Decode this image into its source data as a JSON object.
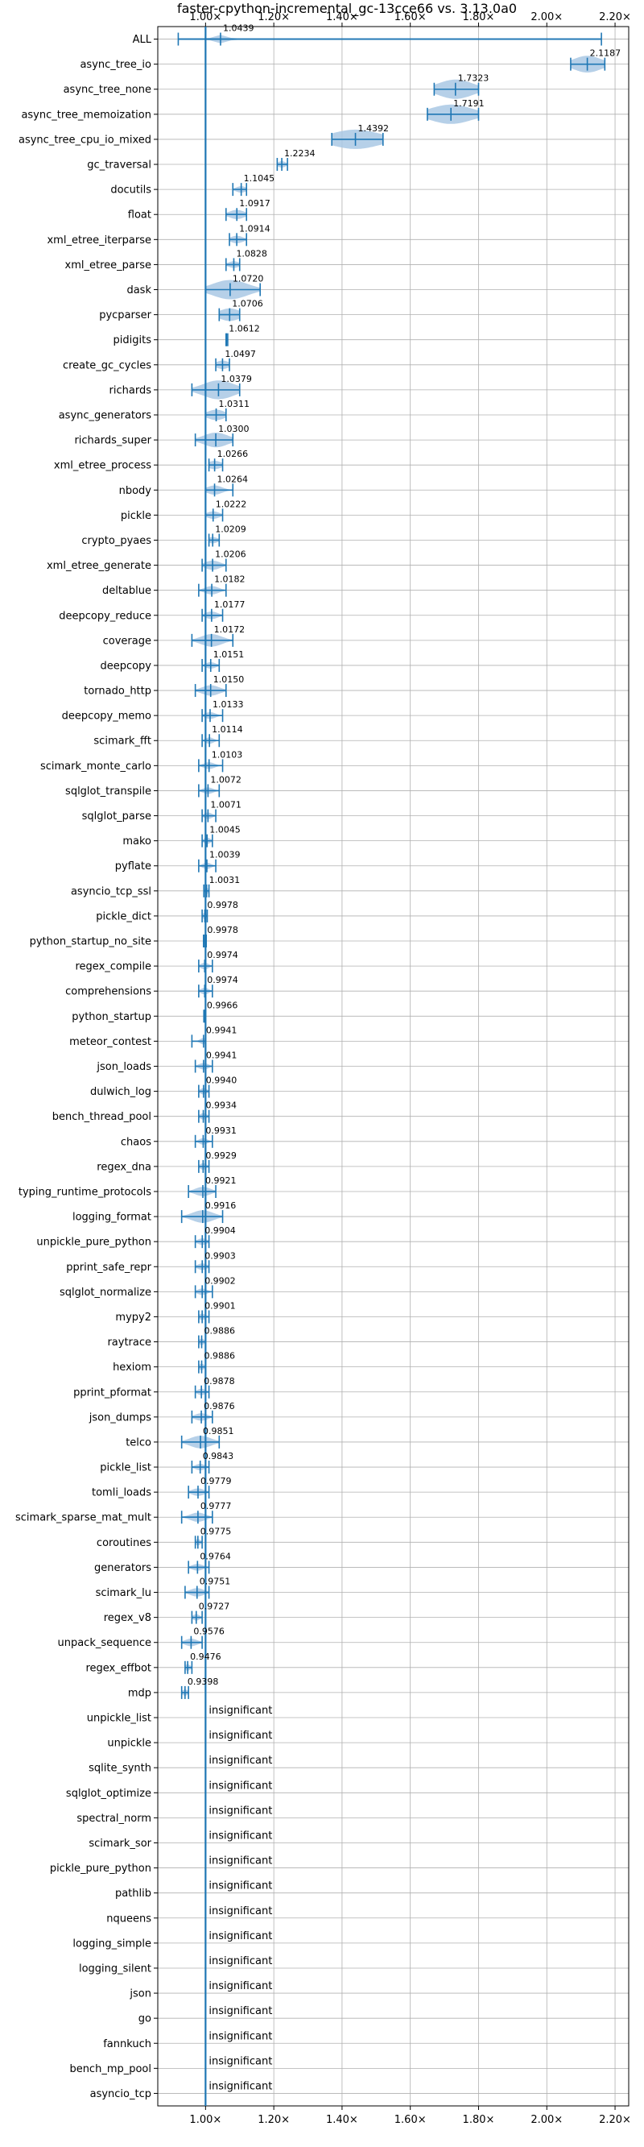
{
  "chart_data": {
    "type": "violin",
    "title": "faster-cpython-incremental_gc-13cce66 vs. 3.13.0a0",
    "xlabel": "",
    "ylabel": "",
    "xlim": [
      0.86,
      2.24
    ],
    "x_ticks": [
      1.0,
      1.2,
      1.4,
      1.6,
      1.8,
      2.0,
      2.2
    ],
    "x_tick_labels": [
      "1.00×",
      "1.20×",
      "1.40×",
      "1.60×",
      "1.80×",
      "2.00×",
      "2.20×"
    ],
    "baseline": 1.0,
    "grid": true,
    "insignificant_label": "insignificant",
    "rows": [
      {
        "name": "ALL",
        "mean": 1.0439,
        "label": "1.0439",
        "min": 0.92,
        "max": 2.16,
        "spread": 0.02
      },
      {
        "name": "async_tree_io",
        "mean": 2.1187,
        "label": "2.1187",
        "min": 2.07,
        "max": 2.17,
        "spread": 0.04
      },
      {
        "name": "async_tree_none",
        "mean": 1.7323,
        "label": "1.7323",
        "min": 1.67,
        "max": 1.8,
        "spread": 0.05
      },
      {
        "name": "async_tree_memoization",
        "mean": 1.7191,
        "label": "1.7191",
        "min": 1.65,
        "max": 1.8,
        "spread": 0.06
      },
      {
        "name": "async_tree_cpu_io_mixed",
        "mean": 1.4392,
        "label": "1.4392",
        "min": 1.37,
        "max": 1.52,
        "spread": 0.07
      },
      {
        "name": "gc_traversal",
        "mean": 1.2234,
        "label": "1.2234",
        "min": 1.21,
        "max": 1.24,
        "spread": 0.012
      },
      {
        "name": "docutils",
        "mean": 1.1045,
        "label": "1.1045",
        "min": 1.08,
        "max": 1.12,
        "spread": 0.015
      },
      {
        "name": "float",
        "mean": 1.0917,
        "label": "1.0917",
        "min": 1.06,
        "max": 1.12,
        "spread": 0.022
      },
      {
        "name": "xml_etree_iterparse",
        "mean": 1.0914,
        "label": "1.0914",
        "min": 1.07,
        "max": 1.12,
        "spread": 0.018
      },
      {
        "name": "xml_etree_parse",
        "mean": 1.0828,
        "label": "1.0828",
        "min": 1.06,
        "max": 1.1,
        "spread": 0.016
      },
      {
        "name": "dask",
        "mean": 1.072,
        "label": "1.0720",
        "min": 1.0,
        "max": 1.16,
        "spread": 0.05
      },
      {
        "name": "pycparser",
        "mean": 1.0706,
        "label": "1.0706",
        "min": 1.04,
        "max": 1.1,
        "spread": 0.03
      },
      {
        "name": "pidigits",
        "mean": 1.0612,
        "label": "1.0612",
        "min": 1.06,
        "max": 1.065,
        "spread": 0.004
      },
      {
        "name": "create_gc_cycles",
        "mean": 1.0497,
        "label": "1.0497",
        "min": 1.03,
        "max": 1.07,
        "spread": 0.02
      },
      {
        "name": "richards",
        "mean": 1.0379,
        "label": "1.0379",
        "min": 0.96,
        "max": 1.1,
        "spread": 0.045
      },
      {
        "name": "async_generators",
        "mean": 1.0311,
        "label": "1.0311",
        "min": 1.0,
        "max": 1.06,
        "spread": 0.025
      },
      {
        "name": "richards_super",
        "mean": 1.03,
        "label": "1.0300",
        "min": 0.97,
        "max": 1.08,
        "spread": 0.035
      },
      {
        "name": "xml_etree_process",
        "mean": 1.0266,
        "label": "1.0266",
        "min": 1.01,
        "max": 1.05,
        "spread": 0.02
      },
      {
        "name": "nbody",
        "mean": 1.0264,
        "label": "1.0264",
        "min": 1.0,
        "max": 1.08,
        "spread": 0.022
      },
      {
        "name": "pickle",
        "mean": 1.0222,
        "label": "1.0222",
        "min": 1.0,
        "max": 1.05,
        "spread": 0.018
      },
      {
        "name": "crypto_pyaes",
        "mean": 1.0209,
        "label": "1.0209",
        "min": 1.01,
        "max": 1.04,
        "spread": 0.014
      },
      {
        "name": "xml_etree_generate",
        "mean": 1.0206,
        "label": "1.0206",
        "min": 0.99,
        "max": 1.06,
        "spread": 0.022
      },
      {
        "name": "deltablue",
        "mean": 1.0182,
        "label": "1.0182",
        "min": 0.98,
        "max": 1.06,
        "spread": 0.02
      },
      {
        "name": "deepcopy_reduce",
        "mean": 1.0177,
        "label": "1.0177",
        "min": 0.99,
        "max": 1.05,
        "spread": 0.018
      },
      {
        "name": "coverage",
        "mean": 1.0172,
        "label": "1.0172",
        "min": 0.96,
        "max": 1.08,
        "spread": 0.03
      },
      {
        "name": "deepcopy",
        "mean": 1.0151,
        "label": "1.0151",
        "min": 0.99,
        "max": 1.04,
        "spread": 0.015
      },
      {
        "name": "tornado_http",
        "mean": 1.015,
        "label": "1.0150",
        "min": 0.97,
        "max": 1.06,
        "spread": 0.025
      },
      {
        "name": "deepcopy_memo",
        "mean": 1.0133,
        "label": "1.0133",
        "min": 0.99,
        "max": 1.05,
        "spread": 0.016
      },
      {
        "name": "scimark_fft",
        "mean": 1.0114,
        "label": "1.0114",
        "min": 0.99,
        "max": 1.04,
        "spread": 0.012
      },
      {
        "name": "scimark_monte_carlo",
        "mean": 1.0103,
        "label": "1.0103",
        "min": 0.98,
        "max": 1.05,
        "spread": 0.016
      },
      {
        "name": "sqlglot_transpile",
        "mean": 1.0072,
        "label": "1.0072",
        "min": 0.98,
        "max": 1.04,
        "spread": 0.015
      },
      {
        "name": "sqlglot_parse",
        "mean": 1.0071,
        "label": "1.0071",
        "min": 0.99,
        "max": 1.03,
        "spread": 0.012
      },
      {
        "name": "mako",
        "mean": 1.0045,
        "label": "1.0045",
        "min": 0.99,
        "max": 1.02,
        "spread": 0.01
      },
      {
        "name": "pyflate",
        "mean": 1.0039,
        "label": "1.0039",
        "min": 0.98,
        "max": 1.03,
        "spread": 0.012
      },
      {
        "name": "asyncio_tcp_ssl",
        "mean": 1.0031,
        "label": "1.0031",
        "min": 0.995,
        "max": 1.01,
        "spread": 0.005
      },
      {
        "name": "pickle_dict",
        "mean": 0.9978,
        "label": "0.9978",
        "min": 0.99,
        "max": 1.005,
        "spread": 0.006
      },
      {
        "name": "python_startup_no_site",
        "mean": 0.9978,
        "label": "0.9978",
        "min": 0.994,
        "max": 1.002,
        "spread": 0.003
      },
      {
        "name": "regex_compile",
        "mean": 0.9974,
        "label": "0.9974",
        "min": 0.98,
        "max": 1.02,
        "spread": 0.012
      },
      {
        "name": "comprehensions",
        "mean": 0.9974,
        "label": "0.9974",
        "min": 0.98,
        "max": 1.02,
        "spread": 0.012
      },
      {
        "name": "python_startup",
        "mean": 0.9966,
        "label": "0.9966",
        "min": 0.995,
        "max": 0.999,
        "spread": 0.002
      },
      {
        "name": "meteor_contest",
        "mean": 0.9941,
        "label": "0.9941",
        "min": 0.96,
        "max": 1.0,
        "spread": 0.01
      },
      {
        "name": "json_loads",
        "mean": 0.9941,
        "label": "0.9941",
        "min": 0.97,
        "max": 1.02,
        "spread": 0.014
      },
      {
        "name": "dulwich_log",
        "mean": 0.994,
        "label": "0.9940",
        "min": 0.98,
        "max": 1.01,
        "spread": 0.01
      },
      {
        "name": "bench_thread_pool",
        "mean": 0.9934,
        "label": "0.9934",
        "min": 0.98,
        "max": 1.01,
        "spread": 0.01
      },
      {
        "name": "chaos",
        "mean": 0.9931,
        "label": "0.9931",
        "min": 0.97,
        "max": 1.02,
        "spread": 0.012
      },
      {
        "name": "regex_dna",
        "mean": 0.9929,
        "label": "0.9929",
        "min": 0.98,
        "max": 1.01,
        "spread": 0.01
      },
      {
        "name": "typing_runtime_protocols",
        "mean": 0.9921,
        "label": "0.9921",
        "min": 0.95,
        "max": 1.03,
        "spread": 0.022
      },
      {
        "name": "logging_format",
        "mean": 0.9916,
        "label": "0.9916",
        "min": 0.93,
        "max": 1.05,
        "spread": 0.03
      },
      {
        "name": "unpickle_pure_python",
        "mean": 0.9904,
        "label": "0.9904",
        "min": 0.97,
        "max": 1.01,
        "spread": 0.014
      },
      {
        "name": "pprint_safe_repr",
        "mean": 0.9903,
        "label": "0.9903",
        "min": 0.97,
        "max": 1.01,
        "spread": 0.014
      },
      {
        "name": "sqlglot_normalize",
        "mean": 0.9902,
        "label": "0.9902",
        "min": 0.97,
        "max": 1.02,
        "spread": 0.014
      },
      {
        "name": "mypy2",
        "mean": 0.9901,
        "label": "0.9901",
        "min": 0.98,
        "max": 1.01,
        "spread": 0.01
      },
      {
        "name": "raytrace",
        "mean": 0.9886,
        "label": "0.9886",
        "min": 0.98,
        "max": 1.0,
        "spread": 0.008
      },
      {
        "name": "hexiom",
        "mean": 0.9886,
        "label": "0.9886",
        "min": 0.98,
        "max": 1.0,
        "spread": 0.008
      },
      {
        "name": "pprint_pformat",
        "mean": 0.9878,
        "label": "0.9878",
        "min": 0.97,
        "max": 1.01,
        "spread": 0.012
      },
      {
        "name": "json_dumps",
        "mean": 0.9876,
        "label": "0.9876",
        "min": 0.96,
        "max": 1.02,
        "spread": 0.018
      },
      {
        "name": "telco",
        "mean": 0.9851,
        "label": "0.9851",
        "min": 0.93,
        "max": 1.04,
        "spread": 0.03
      },
      {
        "name": "pickle_list",
        "mean": 0.9843,
        "label": "0.9843",
        "min": 0.96,
        "max": 1.01,
        "spread": 0.014
      },
      {
        "name": "tomli_loads",
        "mean": 0.9779,
        "label": "0.9779",
        "min": 0.95,
        "max": 1.01,
        "spread": 0.018
      },
      {
        "name": "scimark_sparse_mat_mult",
        "mean": 0.9777,
        "label": "0.9777",
        "min": 0.93,
        "max": 1.02,
        "spread": 0.022
      },
      {
        "name": "coroutines",
        "mean": 0.9775,
        "label": "0.9775",
        "min": 0.97,
        "max": 0.99,
        "spread": 0.008
      },
      {
        "name": "generators",
        "mean": 0.9764,
        "label": "0.9764",
        "min": 0.95,
        "max": 1.01,
        "spread": 0.016
      },
      {
        "name": "scimark_lu",
        "mean": 0.9751,
        "label": "0.9751",
        "min": 0.94,
        "max": 1.01,
        "spread": 0.02
      },
      {
        "name": "regex_v8",
        "mean": 0.9727,
        "label": "0.9727",
        "min": 0.96,
        "max": 0.99,
        "spread": 0.01
      },
      {
        "name": "unpack_sequence",
        "mean": 0.9576,
        "label": "0.9576",
        "min": 0.93,
        "max": 0.99,
        "spread": 0.018
      },
      {
        "name": "regex_effbot",
        "mean": 0.9476,
        "label": "0.9476",
        "min": 0.94,
        "max": 0.96,
        "spread": 0.008
      },
      {
        "name": "mdp",
        "mean": 0.9398,
        "label": "0.9398",
        "min": 0.93,
        "max": 0.95,
        "spread": 0.008
      },
      {
        "name": "unpickle_list",
        "insignificant": true
      },
      {
        "name": "unpickle",
        "insignificant": true
      },
      {
        "name": "sqlite_synth",
        "insignificant": true
      },
      {
        "name": "sqlglot_optimize",
        "insignificant": true
      },
      {
        "name": "spectral_norm",
        "insignificant": true
      },
      {
        "name": "scimark_sor",
        "insignificant": true
      },
      {
        "name": "pickle_pure_python",
        "insignificant": true
      },
      {
        "name": "pathlib",
        "insignificant": true
      },
      {
        "name": "nqueens",
        "insignificant": true
      },
      {
        "name": "logging_simple",
        "insignificant": true
      },
      {
        "name": "logging_silent",
        "insignificant": true
      },
      {
        "name": "json",
        "insignificant": true
      },
      {
        "name": "go",
        "insignificant": true
      },
      {
        "name": "fannkuch",
        "insignificant": true
      },
      {
        "name": "bench_mp_pool",
        "insignificant": true
      },
      {
        "name": "asyncio_tcp",
        "insignificant": true
      }
    ],
    "colors": {
      "primary": "#1f77b4",
      "violin_fill": "#a9c8e4",
      "grid": "#b0b0b0",
      "text": "#000000"
    }
  }
}
